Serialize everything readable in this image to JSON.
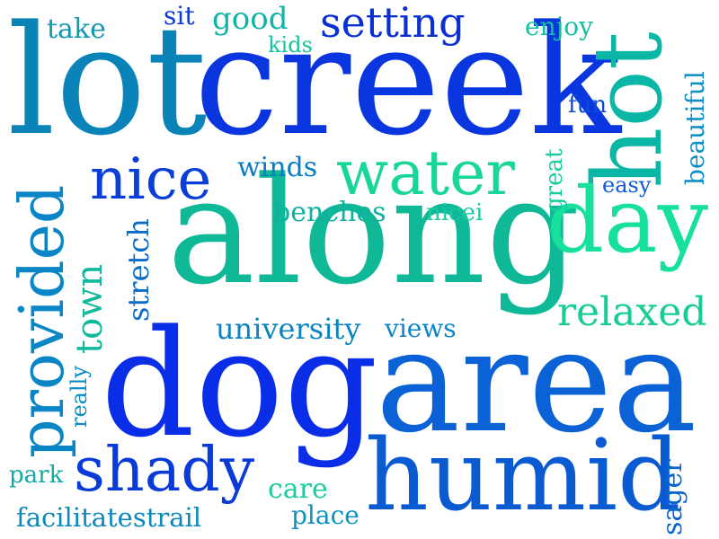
{
  "word_cloud": {
    "words": [
      {
        "text": "lot",
        "color": "#0a84b8"
      },
      {
        "text": "creek",
        "color": "#0a36e0"
      },
      {
        "text": "along",
        "color": "#0fb896"
      },
      {
        "text": "dog",
        "color": "#0a2ee8"
      },
      {
        "text": "area",
        "color": "#0a62d6"
      },
      {
        "text": "humid",
        "color": "#0a5bd2"
      },
      {
        "text": "hot",
        "color": "#0ab7a6"
      },
      {
        "text": "provided",
        "color": "#0a86c6"
      },
      {
        "text": "day",
        "color": "#16e09c"
      },
      {
        "text": "water",
        "color": "#18d69a"
      },
      {
        "text": "nice",
        "color": "#0a3ed8"
      },
      {
        "text": "shady",
        "color": "#0a3ad8"
      },
      {
        "text": "setting",
        "color": "#0a30d2"
      },
      {
        "text": "relaxed",
        "color": "#18cc98"
      },
      {
        "text": "university",
        "color": "#0a84c0"
      },
      {
        "text": "town",
        "color": "#10b89c"
      },
      {
        "text": "stretch",
        "color": "#0a6cc6"
      },
      {
        "text": "benches",
        "color": "#10b0a0"
      },
      {
        "text": "winds",
        "color": "#0a7cc4"
      },
      {
        "text": "views",
        "color": "#0a86c6"
      },
      {
        "text": "take",
        "color": "#1098b0"
      },
      {
        "text": "sit",
        "color": "#0a3ad8"
      },
      {
        "text": "good",
        "color": "#10b4a4"
      },
      {
        "text": "kids",
        "color": "#14c49c"
      },
      {
        "text": "enjoy",
        "color": "#14bea0"
      },
      {
        "text": "fun",
        "color": "#0a4cd8"
      },
      {
        "text": "beautiful",
        "color": "#0a8ec6"
      },
      {
        "text": "great",
        "color": "#16cc9a"
      },
      {
        "text": "easy",
        "color": "#0a5cd8"
      },
      {
        "text": "nicei",
        "color": "#18cca0"
      },
      {
        "text": "really",
        "color": "#0a8cc4"
      },
      {
        "text": "park",
        "color": "#10aca4"
      },
      {
        "text": "care",
        "color": "#18cc9c"
      },
      {
        "text": "place",
        "color": "#0a92c2"
      },
      {
        "text": "sager",
        "color": "#0a64d0"
      },
      {
        "text": "facilitatestrail",
        "color": "#0a88bc"
      }
    ]
  }
}
